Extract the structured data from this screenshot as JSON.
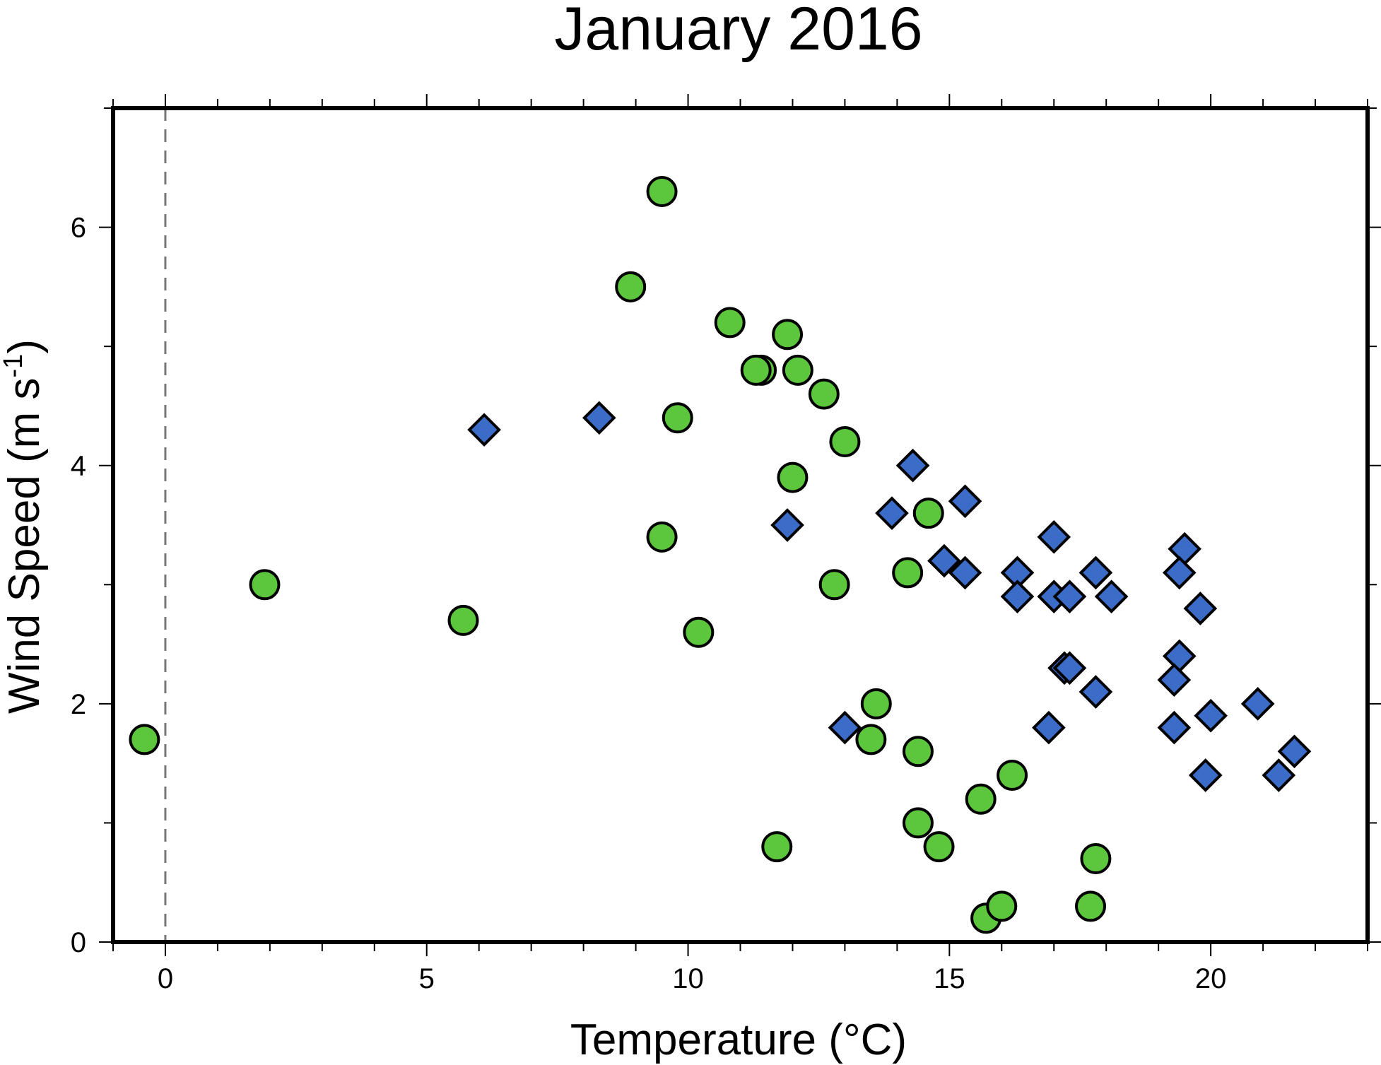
{
  "chart_data": {
    "type": "scatter",
    "title": "January 2016",
    "xlabel": "Temperature (°C)",
    "ylabel": "Wind Speed (m s",
    "ylabel_superscript": "-1",
    "ylabel_close": ")",
    "xlim": [
      -1,
      23
    ],
    "ylim": [
      0,
      7
    ],
    "xticks": [
      0,
      5,
      10,
      15,
      20
    ],
    "xtick_labels": [
      "0",
      "5",
      "10",
      "15",
      "20"
    ],
    "yticks": [
      0,
      2,
      4,
      6
    ],
    "ytick_labels": [
      "0",
      "2",
      "4",
      "6"
    ],
    "reference_line": {
      "x": 0,
      "style": "dashed",
      "color": "#777777"
    },
    "grid": false,
    "series": [
      {
        "name": "circles",
        "marker": "circle",
        "color": "#5cc73c",
        "points": [
          [
            -0.4,
            1.7
          ],
          [
            1.9,
            3.0
          ],
          [
            5.7,
            2.7
          ],
          [
            8.9,
            5.5
          ],
          [
            9.5,
            6.3
          ],
          [
            9.5,
            3.4
          ],
          [
            9.8,
            4.4
          ],
          [
            10.2,
            2.6
          ],
          [
            10.8,
            5.2
          ],
          [
            11.4,
            4.8
          ],
          [
            11.3,
            4.8
          ],
          [
            11.9,
            5.1
          ],
          [
            12.1,
            4.8
          ],
          [
            12.0,
            3.9
          ],
          [
            11.7,
            0.8
          ],
          [
            12.6,
            4.6
          ],
          [
            13.0,
            4.2
          ],
          [
            12.8,
            3.0
          ],
          [
            13.6,
            2.0
          ],
          [
            13.5,
            1.7
          ],
          [
            14.2,
            3.1
          ],
          [
            14.6,
            3.6
          ],
          [
            14.4,
            1.6
          ],
          [
            14.4,
            1.0
          ],
          [
            14.8,
            0.8
          ],
          [
            15.6,
            1.2
          ],
          [
            15.7,
            0.2
          ],
          [
            16.0,
            0.3
          ],
          [
            16.2,
            1.4
          ],
          [
            17.8,
            0.7
          ],
          [
            17.7,
            0.3
          ]
        ]
      },
      {
        "name": "diamonds",
        "marker": "diamond",
        "color": "#3a6cc8",
        "points": [
          [
            6.1,
            4.3
          ],
          [
            8.3,
            4.4
          ],
          [
            11.9,
            3.5
          ],
          [
            13.0,
            1.8
          ],
          [
            13.9,
            3.6
          ],
          [
            14.3,
            4.0
          ],
          [
            14.9,
            3.2
          ],
          [
            15.3,
            3.7
          ],
          [
            15.3,
            3.1
          ],
          [
            16.3,
            3.1
          ],
          [
            16.3,
            2.9
          ],
          [
            17.0,
            3.4
          ],
          [
            17.0,
            2.9
          ],
          [
            17.3,
            2.9
          ],
          [
            17.2,
            2.3
          ],
          [
            17.3,
            2.3
          ],
          [
            16.9,
            1.8
          ],
          [
            17.8,
            3.1
          ],
          [
            17.8,
            2.1
          ],
          [
            18.1,
            2.9
          ],
          [
            19.5,
            3.3
          ],
          [
            19.4,
            3.1
          ],
          [
            19.8,
            2.8
          ],
          [
            19.4,
            2.4
          ],
          [
            19.3,
            2.2
          ],
          [
            19.3,
            1.8
          ],
          [
            20.0,
            1.9
          ],
          [
            19.9,
            1.4
          ],
          [
            20.9,
            2.0
          ],
          [
            21.3,
            1.4
          ],
          [
            21.6,
            1.6
          ]
        ]
      }
    ]
  }
}
